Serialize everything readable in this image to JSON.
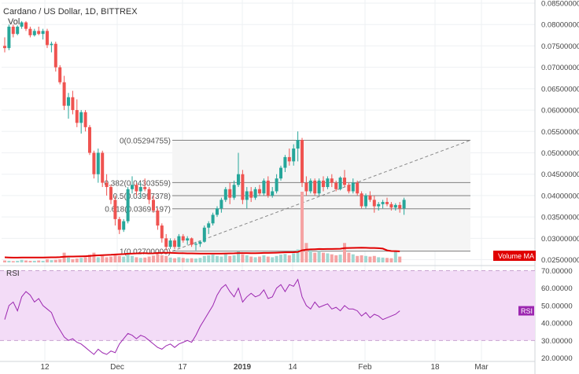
{
  "header": {
    "symbol_title": "Cardano / US Dollar, 1D, BITTREX",
    "volume_label": "Vol"
  },
  "colors": {
    "up": "#26a69a",
    "down": "#ef5350",
    "volume_up": "#9fd8d2",
    "volume_down": "#f5a3a3",
    "volume_ma": "#e00000",
    "rsi_line": "#9c27b0",
    "rsi_band": "#f3dcf7",
    "fib_line": "#808080",
    "fib_area": "#f5f5f5"
  },
  "chart_data": {
    "type": "candlestick",
    "title": "Cardano / US Dollar, 1D, BITTREX",
    "price_axis": {
      "ticks": [
        "0.08500000",
        "0.08000000",
        "0.07500000",
        "0.07000000",
        "0.06500000",
        "0.06000000",
        "0.05500000",
        "0.05000000",
        "0.04500000",
        "0.04000000",
        "0.03500000",
        "0.03000000",
        "0.02500000"
      ],
      "range": [
        0.024,
        0.085
      ]
    },
    "time_axis": {
      "labels": [
        "12",
        "Dec",
        "17",
        "2019",
        "14",
        "Feb",
        "18",
        "Mar"
      ]
    },
    "candles": [
      [
        0.075,
        0.077,
        0.0735,
        0.0745
      ],
      [
        0.0745,
        0.08,
        0.074,
        0.0795
      ],
      [
        0.0795,
        0.08,
        0.077,
        0.0778
      ],
      [
        0.0778,
        0.0798,
        0.0775,
        0.0795
      ],
      [
        0.0795,
        0.0808,
        0.079,
        0.0805
      ],
      [
        0.0805,
        0.0808,
        0.0785,
        0.079
      ],
      [
        0.079,
        0.0795,
        0.077,
        0.0775
      ],
      [
        0.0775,
        0.079,
        0.0772,
        0.0785
      ],
      [
        0.0785,
        0.0795,
        0.0775,
        0.0778
      ],
      [
        0.0778,
        0.079,
        0.0765,
        0.0785
      ],
      [
        0.0785,
        0.079,
        0.0745,
        0.0752
      ],
      [
        0.0752,
        0.076,
        0.0735,
        0.0755
      ],
      [
        0.0755,
        0.076,
        0.069,
        0.07
      ],
      [
        0.07,
        0.0705,
        0.066,
        0.0665
      ],
      [
        0.0665,
        0.068,
        0.06,
        0.061
      ],
      [
        0.061,
        0.064,
        0.058,
        0.063
      ],
      [
        0.063,
        0.0645,
        0.059,
        0.06
      ],
      [
        0.06,
        0.0625,
        0.056,
        0.057
      ],
      [
        0.057,
        0.06,
        0.0545,
        0.0595
      ],
      [
        0.0595,
        0.06,
        0.055,
        0.056
      ],
      [
        0.056,
        0.0565,
        0.0495,
        0.05
      ],
      [
        0.05,
        0.0505,
        0.044,
        0.045
      ],
      [
        0.045,
        0.051,
        0.043,
        0.05
      ],
      [
        0.05,
        0.0505,
        0.042,
        0.043
      ],
      [
        0.043,
        0.045,
        0.04,
        0.042
      ],
      [
        0.042,
        0.0425,
        0.038,
        0.039
      ],
      [
        0.039,
        0.04,
        0.033,
        0.0345
      ],
      [
        0.0345,
        0.035,
        0.031,
        0.032
      ],
      [
        0.032,
        0.0345,
        0.0315,
        0.034
      ],
      [
        0.034,
        0.042,
        0.0335,
        0.0415
      ],
      [
        0.0415,
        0.0445,
        0.0405,
        0.0425
      ],
      [
        0.0425,
        0.043,
        0.04,
        0.041
      ],
      [
        0.041,
        0.043,
        0.0395,
        0.042
      ],
      [
        0.042,
        0.044,
        0.041,
        0.0415
      ],
      [
        0.0415,
        0.042,
        0.038,
        0.039
      ],
      [
        0.039,
        0.04,
        0.036,
        0.0365
      ],
      [
        0.0365,
        0.037,
        0.032,
        0.033
      ],
      [
        0.033,
        0.0335,
        0.029,
        0.03
      ],
      [
        0.03,
        0.031,
        0.0272,
        0.028
      ],
      [
        0.028,
        0.03,
        0.0275,
        0.0295
      ],
      [
        0.0295,
        0.03,
        0.0275,
        0.028
      ],
      [
        0.028,
        0.031,
        0.0278,
        0.0305
      ],
      [
        0.0305,
        0.031,
        0.029,
        0.0295
      ],
      [
        0.0295,
        0.0305,
        0.0285,
        0.03
      ],
      [
        0.03,
        0.0302,
        0.028,
        0.0285
      ],
      [
        0.0285,
        0.0292,
        0.0272,
        0.0287
      ],
      [
        0.0287,
        0.0295,
        0.028,
        0.0292
      ],
      [
        0.0292,
        0.033,
        0.029,
        0.0325
      ],
      [
        0.0325,
        0.034,
        0.031,
        0.0335
      ],
      [
        0.0335,
        0.036,
        0.033,
        0.0355
      ],
      [
        0.0355,
        0.0375,
        0.035,
        0.037
      ],
      [
        0.037,
        0.0395,
        0.036,
        0.039
      ],
      [
        0.039,
        0.042,
        0.0385,
        0.0415
      ],
      [
        0.0415,
        0.043,
        0.038,
        0.0395
      ],
      [
        0.0395,
        0.0435,
        0.039,
        0.0425
      ],
      [
        0.0425,
        0.05,
        0.042,
        0.045
      ],
      [
        0.045,
        0.046,
        0.038,
        0.039
      ],
      [
        0.039,
        0.042,
        0.037,
        0.041
      ],
      [
        0.041,
        0.042,
        0.0385,
        0.0395
      ],
      [
        0.0395,
        0.042,
        0.039,
        0.0415
      ],
      [
        0.0415,
        0.0425,
        0.04,
        0.0405
      ],
      [
        0.0405,
        0.044,
        0.04,
        0.0435
      ],
      [
        0.0435,
        0.0445,
        0.0395,
        0.04
      ],
      [
        0.04,
        0.042,
        0.0395,
        0.041
      ],
      [
        0.041,
        0.045,
        0.0405,
        0.044
      ],
      [
        0.044,
        0.047,
        0.0435,
        0.0465
      ],
      [
        0.0465,
        0.0495,
        0.0455,
        0.049
      ],
      [
        0.049,
        0.051,
        0.047,
        0.048
      ],
      [
        0.048,
        0.052,
        0.047,
        0.051
      ],
      [
        0.051,
        0.055,
        0.048,
        0.053
      ],
      [
        0.053,
        0.0535,
        0.042,
        0.043
      ],
      [
        0.043,
        0.0445,
        0.04,
        0.041
      ],
      [
        0.041,
        0.044,
        0.0405,
        0.0435
      ],
      [
        0.0435,
        0.044,
        0.04,
        0.0405
      ],
      [
        0.0405,
        0.044,
        0.04,
        0.0435
      ],
      [
        0.0435,
        0.0445,
        0.041,
        0.042
      ],
      [
        0.042,
        0.0445,
        0.0415,
        0.044
      ],
      [
        0.044,
        0.045,
        0.042,
        0.043
      ],
      [
        0.043,
        0.0435,
        0.041,
        0.0415
      ],
      [
        0.0415,
        0.0445,
        0.0412,
        0.0442
      ],
      [
        0.0442,
        0.046,
        0.042,
        0.0425
      ],
      [
        0.0425,
        0.043,
        0.0405,
        0.041
      ],
      [
        0.041,
        0.044,
        0.0405,
        0.043
      ],
      [
        0.043,
        0.0435,
        0.04,
        0.0405
      ],
      [
        0.0405,
        0.041,
        0.037,
        0.0375
      ],
      [
        0.0375,
        0.0405,
        0.037,
        0.04
      ],
      [
        0.04,
        0.041,
        0.0385,
        0.039
      ],
      [
        0.039,
        0.04,
        0.036,
        0.0375
      ],
      [
        0.0375,
        0.0385,
        0.0365,
        0.038
      ],
      [
        0.038,
        0.039,
        0.037,
        0.0385
      ],
      [
        0.0385,
        0.0395,
        0.0375,
        0.038
      ],
      [
        0.038,
        0.0385,
        0.0365,
        0.0372
      ],
      [
        0.0372,
        0.0382,
        0.0365,
        0.0378
      ],
      [
        0.0378,
        0.0385,
        0.036,
        0.037
      ],
      [
        0.037,
        0.0395,
        0.0355,
        0.039
      ]
    ],
    "volumes": [
      0.6,
      0.5,
      0.4,
      0.5,
      0.8,
      0.6,
      0.5,
      0.5,
      0.6,
      0.5,
      1.0,
      0.7,
      0.8,
      1.0,
      3.0,
      1.5,
      1.0,
      1.2,
      1.4,
      1.6,
      2.4,
      3.0,
      1.6,
      2.0,
      1.6,
      1.8,
      2.2,
      2.0,
      1.8,
      3.0,
      2.0,
      1.6,
      1.4,
      1.5,
      1.8,
      2.1,
      2.6,
      2.2,
      2.0,
      1.5,
      1.3,
      1.6,
      1.4,
      1.2,
      1.3,
      1.2,
      1.4,
      2.0,
      2.2,
      2.4,
      2.0,
      1.8,
      2.5,
      2.0,
      2.2,
      3.4,
      2.5,
      2.2,
      1.8,
      1.6,
      1.8,
      2.2,
      1.8,
      1.6,
      2.0,
      2.4,
      2.6,
      2.2,
      2.8,
      4.0,
      12.0,
      6.0,
      4.0,
      3.0,
      3.5,
      3.0,
      2.8,
      2.5,
      2.2,
      2.4,
      6.0,
      3.0,
      2.5,
      2.0,
      2.2,
      2.0,
      1.8,
      2.0,
      1.6,
      1.5,
      1.4,
      1.3,
      3.5,
      1.8
    ],
    "volume_ma_label": "Volume MA",
    "fibonacci": [
      {
        "ratio": "0",
        "price": 0.05294755,
        "label": "0(0.05294755)"
      },
      {
        "ratio": "0.382",
        "price": 0.04303559,
        "label": "0.382(0.04303559)"
      },
      {
        "ratio": "0.5",
        "price": 0.03997378,
        "label": "0.5(0.03997378)"
      },
      {
        "ratio": "0.618",
        "price": 0.03691197,
        "label": "0.618(0.03691197)"
      },
      {
        "ratio": "1",
        "price": 0.027,
        "label": "1(0.02700000)"
      }
    ],
    "rsi": {
      "label": "RSI",
      "last_value_label": "RSI",
      "ticks": [
        "70.00000",
        "60.00000",
        "50.00000",
        "40.00000",
        "30.00000",
        "20.00000"
      ],
      "range": [
        18,
        72
      ],
      "band": [
        30,
        70
      ],
      "values": [
        42,
        50,
        52,
        47,
        55,
        58,
        56,
        52,
        54,
        50,
        48,
        46,
        40,
        36,
        32,
        30,
        31,
        29,
        28,
        26,
        24,
        22,
        25,
        23,
        22,
        24,
        23,
        28,
        31,
        34,
        33,
        31,
        33,
        32,
        30,
        28,
        26,
        25,
        27,
        28,
        26,
        28,
        29,
        30,
        29,
        33,
        38,
        42,
        46,
        50,
        56,
        60,
        62,
        58,
        55,
        60,
        52,
        55,
        57,
        55,
        56,
        59,
        54,
        55,
        60,
        62,
        58,
        62,
        61,
        65,
        55,
        50,
        48,
        52,
        49,
        50,
        51,
        48,
        49,
        47,
        50,
        48,
        48,
        47,
        44,
        46,
        43,
        45,
        44,
        42,
        43,
        44,
        45,
        47
      ]
    }
  }
}
